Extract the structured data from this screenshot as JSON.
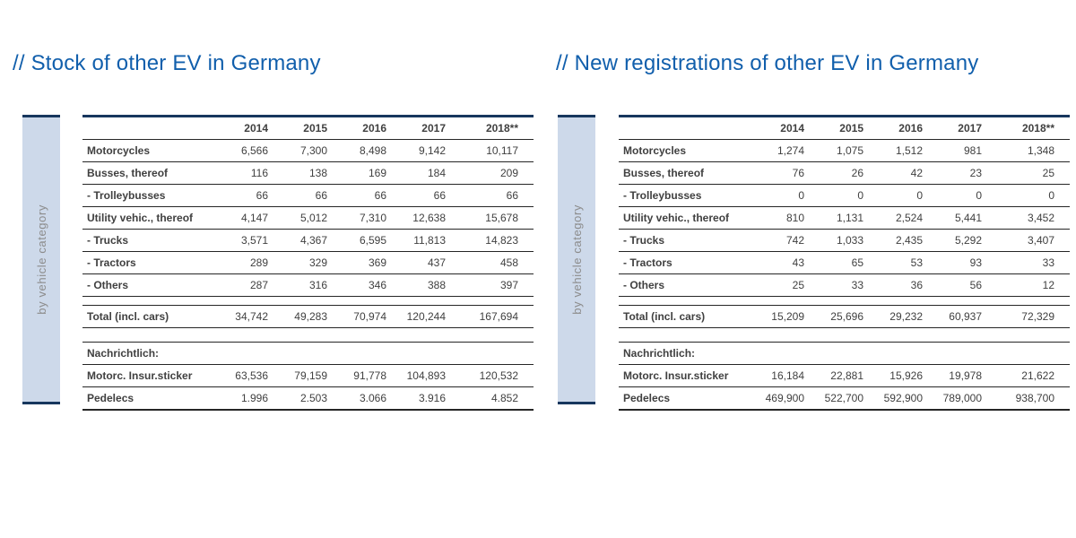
{
  "colors": {
    "title_blue": "#115FAC",
    "navy_rule": "#17375E",
    "sidebar_fill": "#CDD9EA",
    "sidebar_text": "#8C8C8C",
    "table_text": "#404040",
    "thin_rule": "#262626"
  },
  "panels": [
    {
      "title": "// Stock of other EV in Germany",
      "side_label": "by vehicle category",
      "years": [
        "2014",
        "2015",
        "2016",
        "2017",
        "2018**"
      ],
      "rows": [
        {
          "type": "data",
          "label": "Motorcycles",
          "values": [
            "6,566",
            "7,300",
            "8,498",
            "9,142",
            "10,117"
          ]
        },
        {
          "type": "data",
          "label": "Busses, thereof",
          "values": [
            "116",
            "138",
            "169",
            "184",
            "209"
          ]
        },
        {
          "type": "data",
          "label": "- Trolleybusses",
          "values": [
            "66",
            "66",
            "66",
            "66",
            "66"
          ]
        },
        {
          "type": "data",
          "label": "Utility vehic., thereof",
          "values": [
            "4,147",
            "5,012",
            "7,310",
            "12,638",
            "15,678"
          ]
        },
        {
          "type": "data",
          "label": "- Trucks",
          "values": [
            "3,571",
            "4,367",
            "6,595",
            "11,813",
            "14,823"
          ]
        },
        {
          "type": "data",
          "label": "- Tractors",
          "values": [
            "289",
            "329",
            "369",
            "437",
            "458"
          ]
        },
        {
          "type": "data",
          "label": "- Others",
          "values": [
            "287",
            "316",
            "346",
            "388",
            "397"
          ]
        },
        {
          "type": "spacer"
        },
        {
          "type": "data",
          "label": "Total (incl. cars)",
          "values": [
            "34,742",
            "49,283",
            "70,974",
            "120,244",
            "167,694"
          ]
        },
        {
          "type": "gap"
        },
        {
          "type": "section",
          "label": "Nachrichtlich:",
          "values": [
            "",
            "",
            "",
            "",
            ""
          ]
        },
        {
          "type": "data",
          "label": "Motorc. Insur.sticker",
          "values": [
            "63,536",
            "79,159",
            "91,778",
            "104,893",
            "120,532"
          ]
        },
        {
          "type": "data",
          "label": "Pedelecs",
          "values": [
            "1.996",
            "2.503",
            "3.066",
            "3.916",
            "4.852"
          ]
        }
      ]
    },
    {
      "title": "// New registrations of other EV in Germany",
      "side_label": "by vehicle category",
      "years": [
        "2014",
        "2015",
        "2016",
        "2017",
        "2018**"
      ],
      "rows": [
        {
          "type": "data",
          "label": "Motorcycles",
          "values": [
            "1,274",
            "1,075",
            "1,512",
            "981",
            "1,348"
          ]
        },
        {
          "type": "data",
          "label": "Busses, thereof",
          "values": [
            "76",
            "26",
            "42",
            "23",
            "25"
          ]
        },
        {
          "type": "data",
          "label": "- Trolleybusses",
          "values": [
            "0",
            "0",
            "0",
            "0",
            "0"
          ]
        },
        {
          "type": "data",
          "label": "Utility vehic., thereof",
          "values": [
            "810",
            "1,131",
            "2,524",
            "5,441",
            "3,452"
          ]
        },
        {
          "type": "data",
          "label": "- Trucks",
          "values": [
            "742",
            "1,033",
            "2,435",
            "5,292",
            "3,407"
          ]
        },
        {
          "type": "data",
          "label": "- Tractors",
          "values": [
            "43",
            "65",
            "53",
            "93",
            "33"
          ]
        },
        {
          "type": "data",
          "label": "- Others",
          "values": [
            "25",
            "33",
            "36",
            "56",
            "12"
          ]
        },
        {
          "type": "spacer"
        },
        {
          "type": "data",
          "label": "Total (incl. cars)",
          "values": [
            "15,209",
            "25,696",
            "29,232",
            "60,937",
            "72,329"
          ]
        },
        {
          "type": "gap"
        },
        {
          "type": "section",
          "label": "Nachrichtlich:",
          "values": [
            "",
            "",
            "",
            "",
            ""
          ]
        },
        {
          "type": "data",
          "label": "Motorc. Insur.sticker",
          "values": [
            "16,184",
            "22,881",
            "15,926",
            "19,978",
            "21,622"
          ]
        },
        {
          "type": "data",
          "label": "Pedelecs",
          "values": [
            "469,900",
            "522,700",
            "592,900",
            "789,000",
            "938,700"
          ]
        }
      ]
    }
  ]
}
